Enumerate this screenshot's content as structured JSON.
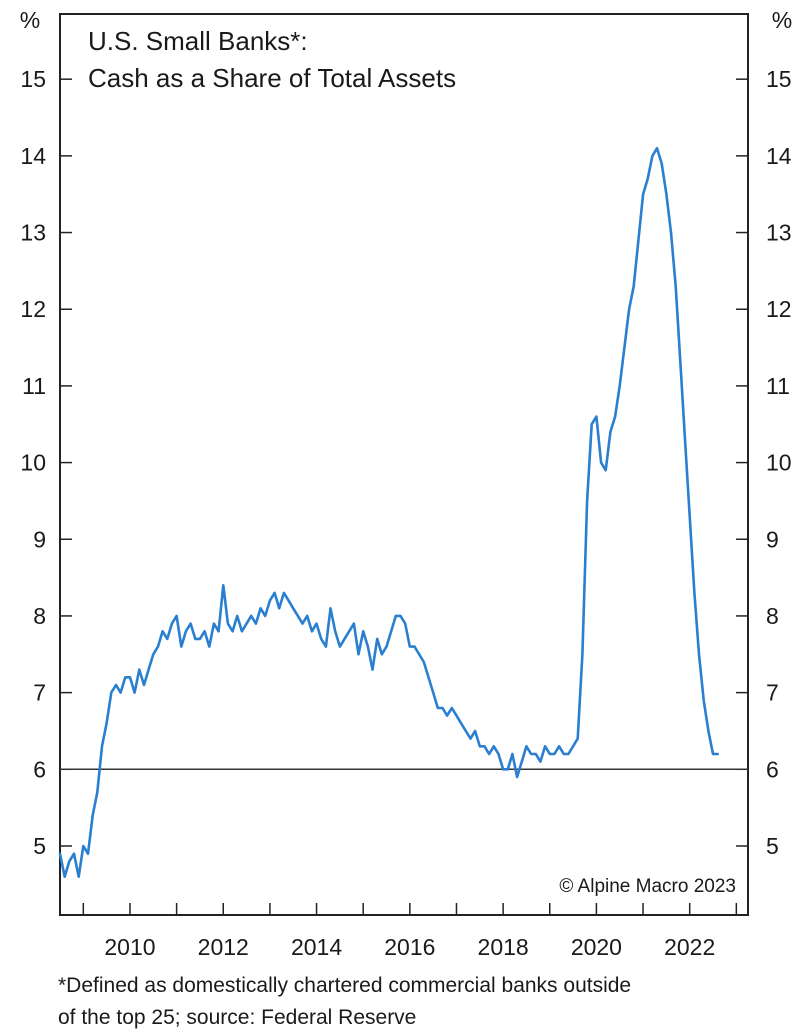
{
  "chart_data": {
    "type": "line",
    "title": "U.S. Small Banks*:",
    "subtitle": "Cash as a Share of Total Assets",
    "ylabel_left": "%",
    "ylabel_right": "%",
    "ylim": [
      4.1,
      15.85
    ],
    "xlim": [
      2008.5,
      2023.25
    ],
    "y_ticks": [
      5,
      6,
      7,
      8,
      9,
      10,
      11,
      12,
      13,
      14,
      15
    ],
    "x_ticks": [
      2010,
      2012,
      2014,
      2016,
      2018,
      2020,
      2022
    ],
    "x_minor_ticks": [
      2009,
      2010,
      2011,
      2012,
      2013,
      2014,
      2015,
      2016,
      2017,
      2018,
      2019,
      2020,
      2021,
      2022,
      2023
    ],
    "reference_line": 6,
    "grid": false,
    "line_color": "#2a7fd0",
    "series": [
      {
        "x": [
          2008.5,
          2008.6,
          2008.7,
          2008.8,
          2008.9,
          2009.0,
          2009.1,
          2009.2,
          2009.3,
          2009.4,
          2009.5,
          2009.6,
          2009.7,
          2009.8,
          2009.9,
          2010.0,
          2010.1,
          2010.2,
          2010.3,
          2010.4,
          2010.5,
          2010.6,
          2010.7,
          2010.8,
          2010.9,
          2011.0,
          2011.1,
          2011.2,
          2011.3,
          2011.4,
          2011.5,
          2011.6,
          2011.7,
          2011.8,
          2011.9,
          2012.0,
          2012.1,
          2012.2,
          2012.3,
          2012.4,
          2012.5,
          2012.6,
          2012.7,
          2012.8,
          2012.9,
          2013.0,
          2013.1,
          2013.2,
          2013.3,
          2013.4,
          2013.5,
          2013.6,
          2013.7,
          2013.8,
          2013.9,
          2014.0,
          2014.1,
          2014.2,
          2014.3,
          2014.4,
          2014.5,
          2014.6,
          2014.7,
          2014.8,
          2014.9,
          2015.0,
          2015.1,
          2015.2,
          2015.3,
          2015.4,
          2015.5,
          2015.6,
          2015.7,
          2015.8,
          2015.9,
          2016.0,
          2016.1,
          2016.2,
          2016.3,
          2016.4,
          2016.5,
          2016.6,
          2016.7,
          2016.8,
          2016.9,
          2017.0,
          2017.1,
          2017.2,
          2017.3,
          2017.4,
          2017.5,
          2017.6,
          2017.7,
          2017.8,
          2017.9,
          2018.0,
          2018.1,
          2018.2,
          2018.3,
          2018.4,
          2018.5,
          2018.6,
          2018.7,
          2018.8,
          2018.9,
          2019.0,
          2019.1,
          2019.2,
          2019.3,
          2019.4,
          2019.5,
          2019.6,
          2019.7,
          2019.8,
          2019.9,
          2020.0,
          2020.1,
          2020.2,
          2020.3,
          2020.4,
          2020.5,
          2020.6,
          2020.7,
          2020.8,
          2020.9,
          2021.0,
          2021.1,
          2021.2,
          2021.3,
          2021.4,
          2021.5,
          2021.6,
          2021.7,
          2021.8,
          2021.9,
          2022.0,
          2022.1,
          2022.2,
          2022.3,
          2022.4,
          2022.5,
          2022.6
        ],
        "values": [
          4.9,
          4.6,
          4.8,
          4.9,
          4.6,
          5.0,
          4.9,
          5.4,
          5.7,
          6.3,
          6.6,
          7.0,
          7.1,
          7.0,
          7.2,
          7.2,
          7.0,
          7.3,
          7.1,
          7.3,
          7.5,
          7.6,
          7.8,
          7.7,
          7.9,
          8.0,
          7.6,
          7.8,
          7.9,
          7.7,
          7.7,
          7.8,
          7.6,
          7.9,
          7.8,
          8.4,
          7.9,
          7.8,
          8.0,
          7.8,
          7.9,
          8.0,
          7.9,
          8.1,
          8.0,
          8.2,
          8.3,
          8.1,
          8.3,
          8.2,
          8.1,
          8.0,
          7.9,
          8.0,
          7.8,
          7.9,
          7.7,
          7.6,
          8.1,
          7.8,
          7.6,
          7.7,
          7.8,
          7.9,
          7.5,
          7.8,
          7.6,
          7.3,
          7.7,
          7.5,
          7.6,
          7.8,
          8.0,
          8.0,
          7.9,
          7.6,
          7.6,
          7.5,
          7.4,
          7.2,
          7.0,
          6.8,
          6.8,
          6.7,
          6.8,
          6.7,
          6.6,
          6.5,
          6.4,
          6.5,
          6.3,
          6.3,
          6.2,
          6.3,
          6.2,
          6.0,
          6.0,
          6.2,
          5.9,
          6.1,
          6.3,
          6.2,
          6.2,
          6.1,
          6.3,
          6.2,
          6.2,
          6.3,
          6.2,
          6.2,
          6.3,
          6.4,
          7.5,
          9.5,
          10.5,
          10.6,
          10.0,
          9.9,
          10.4,
          10.6,
          11.0,
          11.5,
          12.0,
          12.3,
          12.9,
          13.5,
          13.7,
          14.0,
          14.1,
          13.9,
          13.5,
          13.0,
          12.3,
          11.3,
          10.3,
          9.3,
          8.3,
          7.5,
          6.9,
          6.5,
          6.2,
          6.2
        ]
      }
    ]
  },
  "copyright": "© Alpine Macro 2023",
  "footnote": {
    "line1": "*Defined as domestically chartered commercial banks outside",
    "line2": "of the top 25; source: Federal Reserve"
  }
}
